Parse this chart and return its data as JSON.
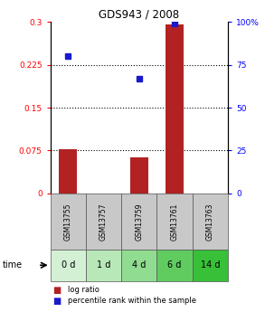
{
  "title": "GDS943 / 2008",
  "samples": [
    "GSM13755",
    "GSM13757",
    "GSM13759",
    "GSM13761",
    "GSM13763"
  ],
  "time_labels": [
    "0 d",
    "1 d",
    "4 d",
    "6 d",
    "14 d"
  ],
  "log_ratio": [
    0.078,
    0.0,
    0.063,
    0.295,
    0.0
  ],
  "percentile_rank": [
    80.0,
    null,
    67.0,
    99.0,
    null
  ],
  "bar_color": "#b22222",
  "dot_color": "#1a1acd",
  "ylim_left": [
    0,
    0.3
  ],
  "ylim_right": [
    0,
    100
  ],
  "yticks_left": [
    0,
    0.075,
    0.15,
    0.225,
    0.3
  ],
  "ytick_labels_left": [
    "0",
    "0.075",
    "0.15",
    "0.225",
    "0.3"
  ],
  "yticks_right": [
    0,
    25,
    50,
    75,
    100
  ],
  "ytick_labels_right": [
    "0",
    "25",
    "50",
    "75",
    "100%"
  ],
  "hlines": [
    0.075,
    0.15,
    0.225
  ],
  "sample_box_color": "#c8c8c8",
  "green_colors": [
    "#d4f0d4",
    "#b8e8b8",
    "#90dc90",
    "#60cc60",
    "#38c038"
  ],
  "bar_width": 0.5,
  "legend_items": [
    "log ratio",
    "percentile rank within the sample"
  ]
}
